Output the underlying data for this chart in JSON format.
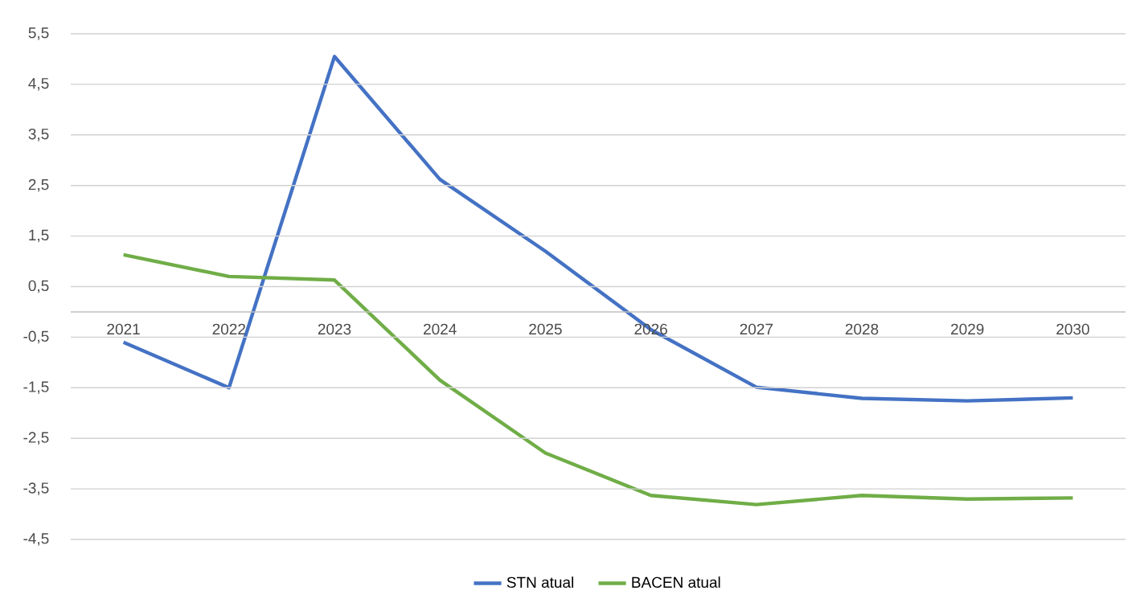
{
  "chart_data": {
    "type": "line",
    "categories": [
      "2021",
      "2022",
      "2023",
      "2024",
      "2025",
      "2026",
      "2027",
      "2028",
      "2029",
      "2030"
    ],
    "series": [
      {
        "name": "STN atual",
        "color": "#4472c4",
        "values": [
          -0.6,
          -1.5,
          5.05,
          2.62,
          1.2,
          -0.35,
          -1.49,
          -1.71,
          -1.76,
          -1.7
        ]
      },
      {
        "name": "BACEN atual",
        "color": "#70ad47",
        "values": [
          1.13,
          0.7,
          0.63,
          -1.35,
          -2.79,
          -3.63,
          -3.81,
          -3.63,
          -3.7,
          -3.68
        ]
      }
    ],
    "ylim": [
      -4.5,
      5.5
    ],
    "yticks": [
      {
        "value": -4.5,
        "label": "-4,5"
      },
      {
        "value": -3.5,
        "label": "-3,5"
      },
      {
        "value": -2.5,
        "label": "-2,5"
      },
      {
        "value": -1.5,
        "label": "-1,5"
      },
      {
        "value": -0.5,
        "label": "-0,5"
      },
      {
        "value": 0.5,
        "label": "0,5"
      },
      {
        "value": 1.5,
        "label": "1,5"
      },
      {
        "value": 2.5,
        "label": "2,5"
      },
      {
        "value": 3.5,
        "label": "3,5"
      },
      {
        "value": 4.5,
        "label": "4,5"
      },
      {
        "value": 5.5,
        "label": "5,5"
      }
    ],
    "grid": "y",
    "legend": "bottom",
    "line_style": "solid"
  }
}
